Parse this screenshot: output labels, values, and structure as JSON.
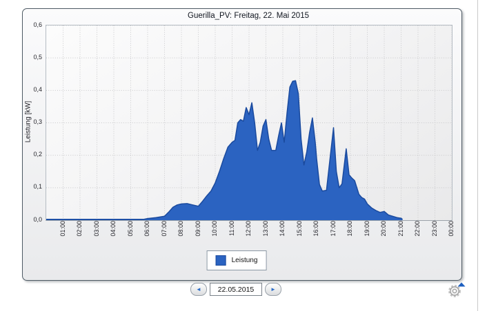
{
  "chart_data": {
    "type": "area",
    "title": "Guerilla_PV: Freitag, 22. Mai 2015",
    "xlabel": "",
    "ylabel": "Leistung [kW]",
    "ylim": [
      0,
      0.6
    ],
    "x_range_hours": [
      0,
      24
    ],
    "grid": "dotted",
    "legend_position": "bottom",
    "y_tick_labels": [
      "0,0",
      "0,1",
      "0,2",
      "0,3",
      "0,4",
      "0,5",
      "0,6"
    ],
    "x_tick_labels": [
      "01:00",
      "02:00",
      "03:00",
      "04:00",
      "05:00",
      "06:00",
      "07:00",
      "08:00",
      "09:00",
      "10:00",
      "11:00",
      "12:00",
      "13:00",
      "14:00",
      "15:00",
      "16:00",
      "17:00",
      "18:00",
      "19:00",
      "20:00",
      "21:00",
      "22:00",
      "23:00",
      "00:00"
    ],
    "series": [
      {
        "name": "Leistung",
        "unit": "kW",
        "fill_color": "#2b63c1",
        "line_color": "#1a4a9e",
        "points": [
          [
            "00:00",
            0
          ],
          [
            "01:00",
            0
          ],
          [
            "02:00",
            0
          ],
          [
            "03:00",
            0
          ],
          [
            "04:00",
            0
          ],
          [
            "05:00",
            0
          ],
          [
            "05:45",
            0
          ],
          [
            "06:00",
            0.005
          ],
          [
            "06:30",
            0.008
          ],
          [
            "07:00",
            0.012
          ],
          [
            "07:15",
            0.025
          ],
          [
            "07:30",
            0.04
          ],
          [
            "07:45",
            0.047
          ],
          [
            "08:00",
            0.05
          ],
          [
            "08:20",
            0.051
          ],
          [
            "08:40",
            0.047
          ],
          [
            "09:00",
            0.043
          ],
          [
            "09:15",
            0.058
          ],
          [
            "09:30",
            0.075
          ],
          [
            "09:45",
            0.09
          ],
          [
            "10:00",
            0.115
          ],
          [
            "10:15",
            0.15
          ],
          [
            "10:30",
            0.19
          ],
          [
            "10:45",
            0.225
          ],
          [
            "11:00",
            0.24
          ],
          [
            "11:10",
            0.246
          ],
          [
            "11:20",
            0.3
          ],
          [
            "11:30",
            0.31
          ],
          [
            "11:40",
            0.305
          ],
          [
            "11:50",
            0.347
          ],
          [
            "12:00",
            0.325
          ],
          [
            "12:10",
            0.362
          ],
          [
            "12:20",
            0.3
          ],
          [
            "12:30",
            0.215
          ],
          [
            "12:40",
            0.24
          ],
          [
            "12:50",
            0.29
          ],
          [
            "13:00",
            0.31
          ],
          [
            "13:10",
            0.25
          ],
          [
            "13:20",
            0.215
          ],
          [
            "13:35",
            0.215
          ],
          [
            "13:45",
            0.26
          ],
          [
            "13:55",
            0.3
          ],
          [
            "14:05",
            0.24
          ],
          [
            "14:15",
            0.33
          ],
          [
            "14:25",
            0.41
          ],
          [
            "14:35",
            0.428
          ],
          [
            "14:45",
            0.43
          ],
          [
            "14:55",
            0.39
          ],
          [
            "15:05",
            0.25
          ],
          [
            "15:15",
            0.17
          ],
          [
            "15:25",
            0.21
          ],
          [
            "15:35",
            0.27
          ],
          [
            "15:45",
            0.315
          ],
          [
            "15:55",
            0.24
          ],
          [
            "16:00",
            0.19
          ],
          [
            "16:10",
            0.11
          ],
          [
            "16:20",
            0.09
          ],
          [
            "16:35",
            0.092
          ],
          [
            "16:45",
            0.17
          ],
          [
            "17:00",
            0.285
          ],
          [
            "17:10",
            0.15
          ],
          [
            "17:20",
            0.1
          ],
          [
            "17:30",
            0.112
          ],
          [
            "17:45",
            0.22
          ],
          [
            "17:55",
            0.14
          ],
          [
            "18:05",
            0.13
          ],
          [
            "18:15",
            0.122
          ],
          [
            "18:30",
            0.08
          ],
          [
            "18:40",
            0.07
          ],
          [
            "18:50",
            0.065
          ],
          [
            "19:00",
            0.05
          ],
          [
            "19:15",
            0.038
          ],
          [
            "19:30",
            0.03
          ],
          [
            "19:45",
            0.024
          ],
          [
            "20:00",
            0.027
          ],
          [
            "20:15",
            0.016
          ],
          [
            "20:30",
            0.012
          ],
          [
            "20:45",
            0.008
          ],
          [
            "21:00",
            0.006
          ],
          [
            "21:05",
            0
          ]
        ]
      }
    ],
    "gridline_color": "#c8c8ca"
  },
  "date_nav": {
    "prev_icon": "◄",
    "date": "22.05.2015",
    "next_icon": "►"
  },
  "icons": {
    "settings_gear": "gear-with-dropdown-arrow",
    "gear_arrow_color": "#1d5fc0"
  }
}
